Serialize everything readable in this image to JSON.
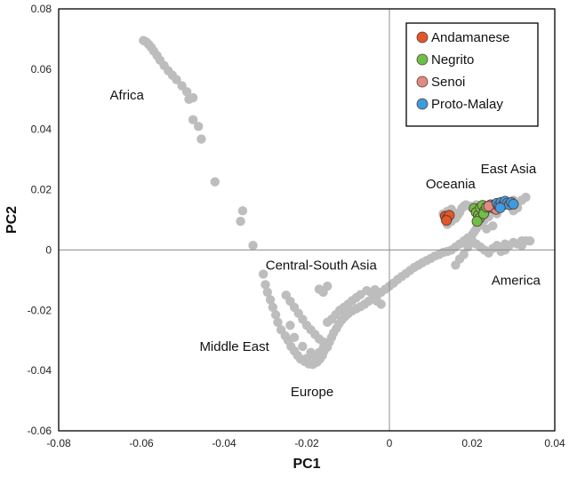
{
  "chart_data": {
    "type": "scatter",
    "title": "",
    "xlabel": "PC1",
    "ylabel": "PC2",
    "xlim": [
      -0.08,
      0.04
    ],
    "ylim": [
      -0.06,
      0.08
    ],
    "xticks": [
      "-0.08",
      "-0.06",
      "-0.04",
      "-0.02",
      "0",
      "0.02",
      "0.04"
    ],
    "yticks": [
      "0.08",
      "0.06",
      "0.04",
      "0.02",
      "0",
      "-0.02",
      "-0.04",
      "-0.06"
    ],
    "zero_lines": true,
    "grid": false,
    "legend_position": "top-right",
    "colors": {
      "background_samples": "#bdbdbd",
      "Andamanese": "#e2572a",
      "Negrito": "#6cc04a",
      "Senoi": "#e08a84",
      "Proto-Malay": "#3d9be0"
    },
    "region_labels": [
      {
        "text": "Africa",
        "x": -0.0635,
        "y": 0.05
      },
      {
        "text": "Oceania",
        "x": 0.0148,
        "y": 0.0205
      },
      {
        "text": "East Asia",
        "x": 0.0288,
        "y": 0.0255
      },
      {
        "text": "Central-South Asia",
        "x": -0.0165,
        "y": -0.0065
      },
      {
        "text": "America",
        "x": 0.0306,
        "y": -0.0115
      },
      {
        "text": "Middle East",
        "x": -0.0375,
        "y": -0.0335
      },
      {
        "text": "Europe",
        "x": -0.0187,
        "y": -0.0485
      }
    ],
    "background_series": {
      "name": "",
      "points": [
        [
          -0.0595,
          0.0695
        ],
        [
          -0.0588,
          0.069
        ],
        [
          -0.0582,
          0.0682
        ],
        [
          -0.0576,
          0.0672
        ],
        [
          -0.057,
          0.066
        ],
        [
          -0.0562,
          0.0645
        ],
        [
          -0.0555,
          0.063
        ],
        [
          -0.0545,
          0.0612
        ],
        [
          -0.0535,
          0.0595
        ],
        [
          -0.0525,
          0.058
        ],
        [
          -0.0515,
          0.0565
        ],
        [
          -0.0502,
          0.0545
        ],
        [
          -0.049,
          0.0525
        ],
        [
          -0.0475,
          0.0505
        ],
        [
          -0.0485,
          0.05
        ],
        [
          -0.0475,
          0.0432
        ],
        [
          -0.0462,
          0.041
        ],
        [
          -0.0455,
          0.0368
        ],
        [
          -0.0422,
          0.0226
        ],
        [
          -0.036,
          0.0095
        ],
        [
          -0.0355,
          0.013
        ],
        [
          -0.033,
          0.0015
        ],
        [
          -0.0305,
          -0.008
        ],
        [
          -0.03,
          -0.0115
        ],
        [
          -0.0295,
          -0.014
        ],
        [
          -0.0288,
          -0.0165
        ],
        [
          -0.0282,
          -0.019
        ],
        [
          -0.0275,
          -0.0215
        ],
        [
          -0.027,
          -0.024
        ],
        [
          -0.0262,
          -0.0265
        ],
        [
          -0.0252,
          -0.0285
        ],
        [
          -0.0245,
          -0.03
        ],
        [
          -0.0238,
          -0.032
        ],
        [
          -0.023,
          -0.0335
        ],
        [
          -0.0222,
          -0.035
        ],
        [
          -0.0215,
          -0.0362
        ],
        [
          -0.0205,
          -0.037
        ],
        [
          -0.0195,
          -0.0378
        ],
        [
          -0.0185,
          -0.038
        ],
        [
          -0.0175,
          -0.0372
        ],
        [
          -0.0168,
          -0.0362
        ],
        [
          -0.0162,
          -0.035
        ],
        [
          -0.0158,
          -0.0335
        ],
        [
          -0.015,
          -0.0322
        ],
        [
          -0.0145,
          -0.0305
        ],
        [
          -0.014,
          -0.029
        ],
        [
          -0.0135,
          -0.0275
        ],
        [
          -0.0128,
          -0.026
        ],
        [
          -0.0122,
          -0.0245
        ],
        [
          -0.0115,
          -0.0232
        ],
        [
          -0.0108,
          -0.0222
        ],
        [
          -0.01,
          -0.0212
        ],
        [
          -0.009,
          -0.0202
        ],
        [
          -0.008,
          -0.0195
        ],
        [
          -0.007,
          -0.0188
        ],
        [
          -0.006,
          -0.018
        ],
        [
          -0.005,
          -0.017
        ],
        [
          -0.004,
          -0.016
        ],
        [
          -0.003,
          -0.015
        ],
        [
          -0.002,
          -0.014
        ],
        [
          -0.001,
          -0.013
        ],
        [
          0.0,
          -0.012
        ],
        [
          0.001,
          -0.011
        ],
        [
          0.002,
          -0.0098
        ],
        [
          0.003,
          -0.0088
        ],
        [
          0.004,
          -0.0078
        ],
        [
          0.005,
          -0.0068
        ],
        [
          0.006,
          -0.0058
        ],
        [
          0.007,
          -0.005
        ],
        [
          0.008,
          -0.0042
        ],
        [
          0.009,
          -0.0035
        ],
        [
          0.01,
          -0.0028
        ],
        [
          0.011,
          -0.002
        ],
        [
          0.012,
          -0.0015
        ],
        [
          0.013,
          -0.0008
        ],
        [
          -0.025,
          -0.015
        ],
        [
          -0.024,
          -0.017
        ],
        [
          -0.023,
          -0.019
        ],
        [
          -0.022,
          -0.021
        ],
        [
          -0.021,
          -0.023
        ],
        [
          -0.02,
          -0.025
        ],
        [
          -0.019,
          -0.0265
        ],
        [
          -0.018,
          -0.028
        ],
        [
          -0.017,
          -0.0295
        ],
        [
          -0.016,
          -0.0305
        ],
        [
          -0.015,
          -0.024
        ],
        [
          -0.014,
          -0.023
        ],
        [
          -0.013,
          -0.0215
        ],
        [
          -0.012,
          -0.02
        ],
        [
          -0.011,
          -0.019
        ],
        [
          -0.01,
          -0.018
        ],
        [
          -0.009,
          -0.0168
        ],
        [
          -0.008,
          -0.0158
        ],
        [
          -0.007,
          -0.0148
        ],
        [
          -0.0055,
          -0.0135
        ],
        [
          -0.0045,
          -0.014
        ],
        [
          -0.0035,
          -0.0132
        ],
        [
          -0.003,
          -0.017
        ],
        [
          -0.002,
          -0.018
        ],
        [
          -0.016,
          -0.014
        ],
        [
          -0.017,
          -0.013
        ],
        [
          -0.015,
          -0.012
        ],
        [
          -0.023,
          -0.029
        ],
        [
          -0.021,
          -0.032
        ],
        [
          -0.019,
          -0.034
        ],
        [
          -0.02,
          -0.036
        ],
        [
          -0.018,
          -0.0355
        ],
        [
          -0.017,
          -0.034
        ],
        [
          -0.016,
          -0.0325
        ],
        [
          -0.024,
          -0.025
        ],
        [
          0.013,
          0.012
        ],
        [
          0.014,
          0.0128
        ],
        [
          0.015,
          0.0135
        ],
        [
          0.0155,
          0.0125
        ],
        [
          0.0145,
          0.011
        ],
        [
          0.0135,
          0.01
        ],
        [
          0.014,
          0.0085
        ],
        [
          0.015,
          0.0095
        ],
        [
          0.016,
          0.0105
        ],
        [
          0.0165,
          0.0115
        ],
        [
          0.017,
          0.0125
        ],
        [
          0.0175,
          0.0138
        ],
        [
          0.018,
          0.0145
        ],
        [
          0.0185,
          0.015
        ],
        [
          0.0195,
          0.0145
        ],
        [
          0.02,
          0.014
        ],
        [
          0.021,
          0.015
        ],
        [
          0.022,
          0.0145
        ],
        [
          0.023,
          0.015
        ],
        [
          0.024,
          0.014
        ],
        [
          0.025,
          0.015
        ],
        [
          0.026,
          0.0148
        ],
        [
          0.027,
          0.015
        ],
        [
          0.028,
          0.0155
        ],
        [
          0.029,
          0.015
        ],
        [
          0.03,
          0.0165
        ],
        [
          0.031,
          0.0155
        ],
        [
          0.032,
          0.0165
        ],
        [
          0.033,
          0.0175
        ],
        [
          0.025,
          0.013
        ],
        [
          0.026,
          0.012
        ],
        [
          0.024,
          0.011
        ],
        [
          0.023,
          0.01
        ],
        [
          0.022,
          0.009
        ],
        [
          0.0215,
          0.008
        ],
        [
          0.021,
          0.007
        ],
        [
          0.0205,
          0.006
        ],
        [
          0.02,
          0.005
        ],
        [
          0.019,
          0.004
        ],
        [
          0.018,
          0.003
        ],
        [
          0.017,
          0.002
        ],
        [
          0.016,
          0.001
        ],
        [
          0.015,
          0.0
        ],
        [
          0.014,
          -0.0005
        ],
        [
          0.02,
          0.003
        ],
        [
          0.021,
          0.002
        ],
        [
          0.022,
          0.001
        ],
        [
          0.023,
          0.0
        ],
        [
          0.024,
          -0.001
        ],
        [
          0.025,
          0.0005
        ],
        [
          0.026,
          0.0015
        ],
        [
          0.027,
          0.001
        ],
        [
          0.028,
          0.002
        ],
        [
          0.029,
          0.0015
        ],
        [
          0.03,
          0.0025
        ],
        [
          0.031,
          0.002
        ],
        [
          0.032,
          0.003
        ],
        [
          0.033,
          0.003
        ],
        [
          0.034,
          0.003
        ],
        [
          0.025,
          0.008
        ],
        [
          0.0235,
          0.007
        ],
        [
          0.018,
          -0.0015
        ],
        [
          0.017,
          -0.003
        ],
        [
          0.016,
          -0.005
        ],
        [
          0.019,
          0.001
        ],
        [
          0.028,
          0.0
        ],
        [
          0.027,
          -0.0005
        ],
        [
          0.032,
          0.0015
        ],
        [
          0.03,
          0.013
        ],
        [
          0.031,
          0.014
        ]
      ]
    },
    "series": [
      {
        "name": "Andamanese",
        "points": [
          [
            0.0135,
            0.0112
          ],
          [
            0.014,
            0.0105
          ],
          [
            0.0145,
            0.0115
          ],
          [
            0.0138,
            0.0098
          ]
        ]
      },
      {
        "name": "Negrito",
        "points": [
          [
            0.0205,
            0.0138
          ],
          [
            0.021,
            0.0125
          ],
          [
            0.0215,
            0.0115
          ],
          [
            0.022,
            0.014
          ],
          [
            0.0225,
            0.0148
          ],
          [
            0.023,
            0.013
          ],
          [
            0.0218,
            0.0105
          ],
          [
            0.0228,
            0.012
          ],
          [
            0.0235,
            0.0142
          ],
          [
            0.0212,
            0.0095
          ]
        ]
      },
      {
        "name": "Senoi",
        "points": [
          [
            0.0245,
            0.015
          ],
          [
            0.025,
            0.014
          ],
          [
            0.0255,
            0.015
          ],
          [
            0.0258,
            0.0135
          ],
          [
            0.0262,
            0.0148
          ],
          [
            0.024,
            0.0145
          ]
        ]
      },
      {
        "name": "Proto-Malay",
        "points": [
          [
            0.026,
            0.0155
          ],
          [
            0.0265,
            0.0148
          ],
          [
            0.027,
            0.0158
          ],
          [
            0.0275,
            0.015
          ],
          [
            0.028,
            0.0162
          ],
          [
            0.0285,
            0.0155
          ],
          [
            0.029,
            0.015
          ],
          [
            0.0295,
            0.0158
          ],
          [
            0.03,
            0.0152
          ],
          [
            0.0268,
            0.014
          ]
        ]
      }
    ]
  }
}
